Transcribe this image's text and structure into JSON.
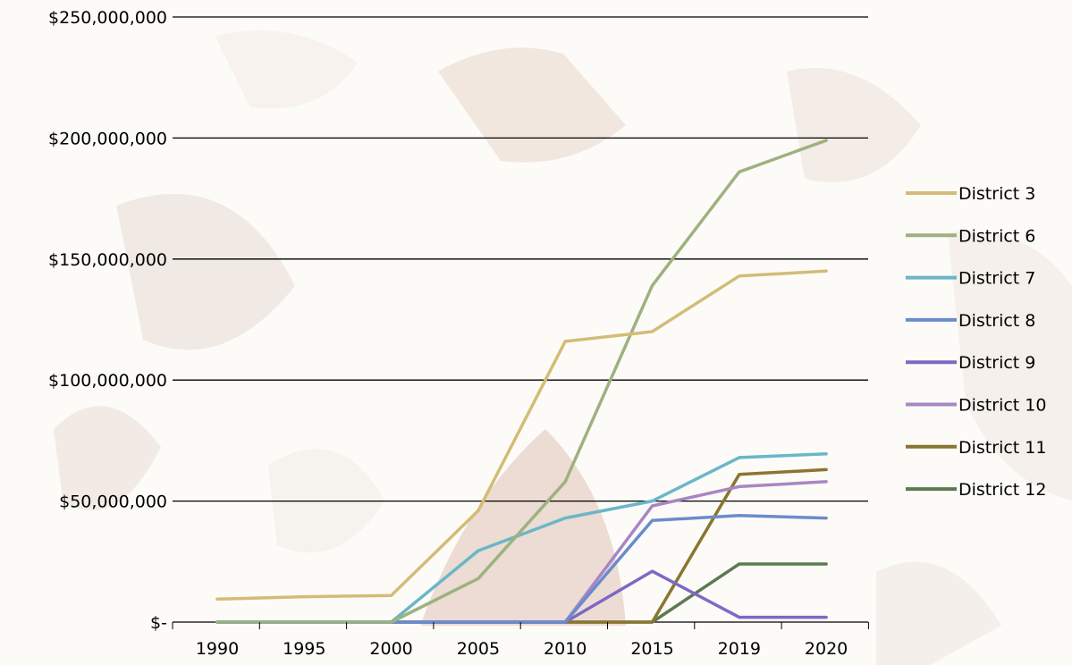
{
  "chart_data": {
    "type": "line",
    "categories": [
      "1990",
      "1995",
      "2000",
      "2005",
      "2010",
      "2015",
      "2019",
      "2020"
    ],
    "y_tick_labels": [
      "$-",
      "$50,000,000",
      "$100,000,000",
      "$150,000,000",
      "$200,000,000",
      "$250,000,000"
    ],
    "y_ticks": [
      0,
      50000000,
      100000000,
      150000000,
      200000000,
      250000000
    ],
    "ylim": [
      0,
      250000000
    ],
    "grid": "horizontal",
    "legend_position": "right",
    "series": [
      {
        "name": "District 3",
        "color": "#D4BC76",
        "values": [
          9500000,
          10500000,
          11000000,
          46000000,
          116000000,
          120000000,
          143000000,
          145000000
        ]
      },
      {
        "name": "District 6",
        "color": "#9DB27E",
        "values": [
          0,
          0,
          0,
          18000000,
          58000000,
          139000000,
          186000000,
          199000000
        ]
      },
      {
        "name": "District 7",
        "color": "#6BB6C9",
        "values": [
          0,
          0,
          0,
          29500000,
          43000000,
          50000000,
          68000000,
          69500000
        ]
      },
      {
        "name": "District 8",
        "color": "#6A8CCB",
        "values": [
          0,
          0,
          0,
          0,
          0,
          42000000,
          44000000,
          43000000
        ]
      },
      {
        "name": "District 9",
        "color": "#7E68C4",
        "values": [
          0,
          0,
          0,
          0,
          0,
          21000000,
          2000000,
          2000000
        ]
      },
      {
        "name": "District 10",
        "color": "#A886C4",
        "values": [
          0,
          0,
          0,
          0,
          0,
          48000000,
          56000000,
          58000000
        ]
      },
      {
        "name": "District 11",
        "color": "#8A7530",
        "values": [
          0,
          0,
          0,
          0,
          0,
          0,
          61000000,
          63000000
        ]
      },
      {
        "name": "District 12",
        "color": "#5C7A50",
        "values": [
          0,
          0,
          0,
          0,
          0,
          0,
          24000000,
          24000000
        ]
      }
    ]
  }
}
